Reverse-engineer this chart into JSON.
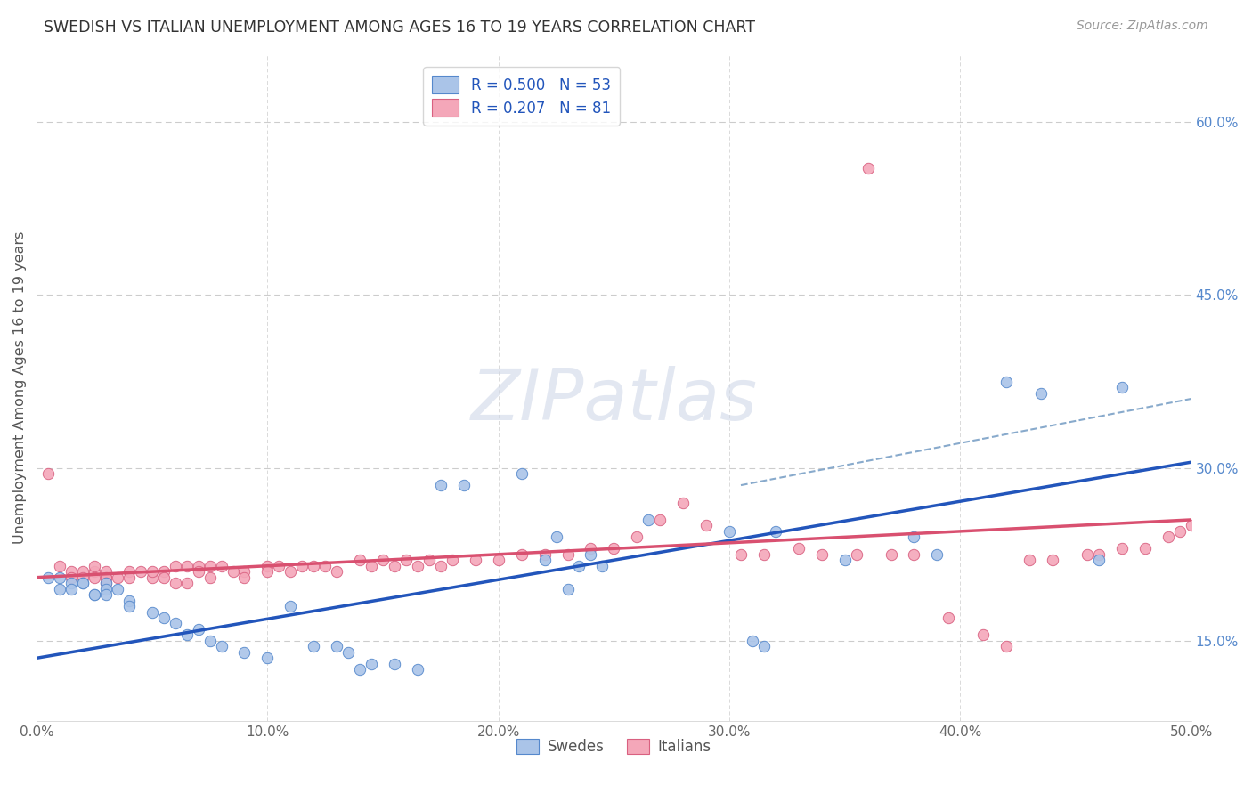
{
  "title": "SWEDISH VS ITALIAN UNEMPLOYMENT AMONG AGES 16 TO 19 YEARS CORRELATION CHART",
  "source": "Source: ZipAtlas.com",
  "ylabel": "Unemployment Among Ages 16 to 19 years",
  "xlim": [
    0.0,
    0.5
  ],
  "ylim": [
    0.08,
    0.66
  ],
  "xticks": [
    0.0,
    0.1,
    0.2,
    0.3,
    0.4,
    0.5
  ],
  "yticks_right": [
    0.15,
    0.3,
    0.45,
    0.6
  ],
  "ytick_labels_right": [
    "15.0%",
    "30.0%",
    "45.0%",
    "60.0%"
  ],
  "xtick_labels": [
    "0.0%",
    "",
    "10.0%",
    "",
    "20.0%",
    "",
    "30.0%",
    "",
    "40.0%",
    "",
    "50.0%"
  ],
  "xticks_all": [
    0.0,
    0.05,
    0.1,
    0.15,
    0.2,
    0.25,
    0.3,
    0.35,
    0.4,
    0.45,
    0.5
  ],
  "grid_color": "#cccccc",
  "background_color": "#ffffff",
  "swede_color": "#aac4e8",
  "italian_color": "#f4a7b9",
  "swede_edge_color": "#5588cc",
  "italian_edge_color": "#d96080",
  "blue_line_color": "#2255bb",
  "pink_line_color": "#d95070",
  "dashed_line_color": "#88aacc",
  "legend_text_color": "#2255bb",
  "legend_label_color": "#333333",
  "swedes_label": "Swedes",
  "italians_label": "Italians",
  "legend_R_swede": "0.500",
  "legend_N_swede": "53",
  "legend_R_italian": "0.207",
  "legend_N_italian": "81",
  "swedes_x": [
    0.005,
    0.01,
    0.01,
    0.015,
    0.015,
    0.02,
    0.02,
    0.025,
    0.025,
    0.03,
    0.03,
    0.03,
    0.035,
    0.04,
    0.04,
    0.05,
    0.055,
    0.06,
    0.065,
    0.07,
    0.075,
    0.08,
    0.09,
    0.1,
    0.11,
    0.12,
    0.13,
    0.135,
    0.14,
    0.145,
    0.155,
    0.165,
    0.175,
    0.185,
    0.21,
    0.22,
    0.225,
    0.23,
    0.235,
    0.24,
    0.245,
    0.265,
    0.3,
    0.31,
    0.315,
    0.32,
    0.35,
    0.38,
    0.39,
    0.42,
    0.435,
    0.46,
    0.47
  ],
  "swedes_y": [
    0.205,
    0.195,
    0.205,
    0.2,
    0.195,
    0.2,
    0.2,
    0.19,
    0.19,
    0.2,
    0.195,
    0.19,
    0.195,
    0.185,
    0.18,
    0.175,
    0.17,
    0.165,
    0.155,
    0.16,
    0.15,
    0.145,
    0.14,
    0.135,
    0.18,
    0.145,
    0.145,
    0.14,
    0.125,
    0.13,
    0.13,
    0.125,
    0.285,
    0.285,
    0.295,
    0.22,
    0.24,
    0.195,
    0.215,
    0.225,
    0.215,
    0.255,
    0.245,
    0.15,
    0.145,
    0.245,
    0.22,
    0.24,
    0.225,
    0.375,
    0.365,
    0.22,
    0.37
  ],
  "italians_x": [
    0.005,
    0.01,
    0.015,
    0.015,
    0.02,
    0.02,
    0.025,
    0.025,
    0.025,
    0.03,
    0.03,
    0.03,
    0.03,
    0.035,
    0.04,
    0.04,
    0.045,
    0.05,
    0.05,
    0.055,
    0.055,
    0.06,
    0.06,
    0.065,
    0.065,
    0.07,
    0.07,
    0.075,
    0.075,
    0.08,
    0.085,
    0.09,
    0.09,
    0.1,
    0.1,
    0.105,
    0.11,
    0.115,
    0.12,
    0.125,
    0.13,
    0.14,
    0.145,
    0.15,
    0.155,
    0.16,
    0.165,
    0.17,
    0.175,
    0.18,
    0.19,
    0.2,
    0.21,
    0.22,
    0.23,
    0.24,
    0.25,
    0.26,
    0.27,
    0.28,
    0.29,
    0.305,
    0.315,
    0.33,
    0.34,
    0.355,
    0.36,
    0.37,
    0.38,
    0.395,
    0.41,
    0.42,
    0.43,
    0.44,
    0.455,
    0.46,
    0.47,
    0.48,
    0.49,
    0.495,
    0.5
  ],
  "italians_y": [
    0.295,
    0.215,
    0.21,
    0.205,
    0.21,
    0.205,
    0.21,
    0.215,
    0.205,
    0.205,
    0.21,
    0.205,
    0.2,
    0.205,
    0.21,
    0.205,
    0.21,
    0.205,
    0.21,
    0.21,
    0.205,
    0.215,
    0.2,
    0.215,
    0.2,
    0.215,
    0.21,
    0.215,
    0.205,
    0.215,
    0.21,
    0.21,
    0.205,
    0.215,
    0.21,
    0.215,
    0.21,
    0.215,
    0.215,
    0.215,
    0.21,
    0.22,
    0.215,
    0.22,
    0.215,
    0.22,
    0.215,
    0.22,
    0.215,
    0.22,
    0.22,
    0.22,
    0.225,
    0.225,
    0.225,
    0.23,
    0.23,
    0.24,
    0.255,
    0.27,
    0.25,
    0.225,
    0.225,
    0.23,
    0.225,
    0.225,
    0.56,
    0.225,
    0.225,
    0.17,
    0.155,
    0.145,
    0.22,
    0.22,
    0.225,
    0.225,
    0.23,
    0.23,
    0.24,
    0.245,
    0.25
  ],
  "blue_line_x0": 0.0,
  "blue_line_x1": 0.5,
  "blue_line_y0": 0.135,
  "blue_line_y1": 0.305,
  "pink_line_x0": 0.0,
  "pink_line_x1": 0.5,
  "pink_line_y0": 0.205,
  "pink_line_y1": 0.255,
  "dashed_line_x0": 0.305,
  "dashed_line_x1": 0.5,
  "dashed_line_y0": 0.285,
  "dashed_line_y1": 0.36,
  "marker_size": 80,
  "watermark_text": "ZIPatlas",
  "watermark_color": "#d0d8e8",
  "watermark_alpha": 0.6
}
